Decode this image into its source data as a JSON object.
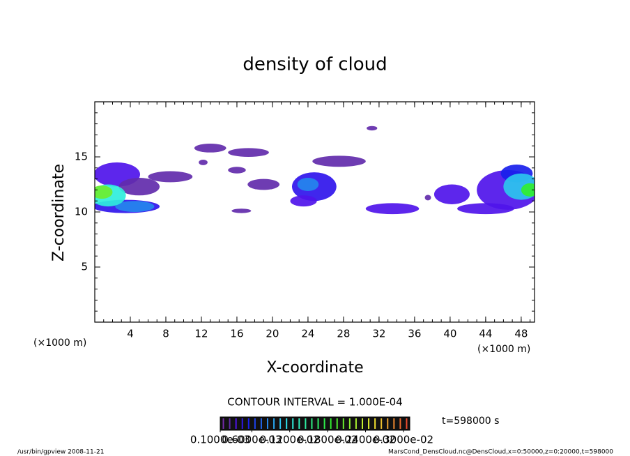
{
  "chart_data": {
    "type": "contour",
    "title": "density of cloud",
    "xlabel": "X-coordinate",
    "ylabel": "Z-coordinate",
    "xunit": "(×1000 m)",
    "xlim": [
      0,
      49.5
    ],
    "ylim": [
      0,
      20
    ],
    "xticks": [
      4,
      8,
      12,
      16,
      20,
      24,
      28,
      32,
      36,
      40,
      44,
      48
    ],
    "yticks": [
      5,
      10,
      15
    ],
    "contour_interval": 0.0001,
    "contour_label": "CONTOUR INTERVAL = 1.000E-04",
    "time_label": "t=598000 s",
    "colorbar": {
      "lim": [
        0.0001,
        0.0031
      ],
      "ticks": [
        {
          "value": 0.0001,
          "label": "0.1000e-03"
        },
        {
          "value": 0.0006,
          "label": "0.6000e-03"
        },
        {
          "value": 0.0012,
          "label": "0.1200e-02"
        },
        {
          "value": 0.0018,
          "label": "0.1800e-02"
        },
        {
          "value": 0.0024,
          "label": "0.2400e-02"
        },
        {
          "value": 0.003,
          "label": "0.3000e-02"
        }
      ]
    },
    "patches": [
      {
        "x": 2.5,
        "z": 13.4,
        "rx": 2.6,
        "rz": 1.1,
        "value": 0.0003
      },
      {
        "x": 5,
        "z": 12.3,
        "rx": 2.3,
        "rz": 0.8,
        "value": 0.0002
      },
      {
        "x": 3.5,
        "z": 10.5,
        "rx": 3.8,
        "rz": 0.6,
        "value": 0.0004
      },
      {
        "x": 4.5,
        "z": 10.5,
        "rx": 2.2,
        "rz": 0.5,
        "value": 0.0008
      },
      {
        "x": 1.5,
        "z": 11.5,
        "rx": 2,
        "rz": 1,
        "value": 0.0012
      },
      {
        "x": 0.8,
        "z": 11.8,
        "rx": 1.2,
        "rz": 0.6,
        "value": 0.002
      },
      {
        "x": 8.5,
        "z": 13.2,
        "rx": 2.5,
        "rz": 0.5,
        "value": 0.0002
      },
      {
        "x": 13,
        "z": 15.8,
        "rx": 1.8,
        "rz": 0.4,
        "value": 0.0002
      },
      {
        "x": 17.3,
        "z": 15.4,
        "rx": 2.3,
        "rz": 0.4,
        "value": 0.0002
      },
      {
        "x": 12.2,
        "z": 14.5,
        "rx": 0.5,
        "rz": 0.25,
        "value": 0.0002
      },
      {
        "x": 16,
        "z": 13.8,
        "rx": 1,
        "rz": 0.3,
        "value": 0.0002
      },
      {
        "x": 19,
        "z": 12.5,
        "rx": 1.8,
        "rz": 0.5,
        "value": 0.0002
      },
      {
        "x": 24.7,
        "z": 12.3,
        "rx": 2.5,
        "rz": 1.3,
        "value": 0.0004
      },
      {
        "x": 24,
        "z": 12.5,
        "rx": 1.2,
        "rz": 0.6,
        "value": 0.0008
      },
      {
        "x": 23.5,
        "z": 11,
        "rx": 1.5,
        "rz": 0.5,
        "value": 0.0003
      },
      {
        "x": 16.5,
        "z": 10.1,
        "rx": 1.1,
        "rz": 0.2,
        "value": 0.0002
      },
      {
        "x": 27.5,
        "z": 14.6,
        "rx": 3,
        "rz": 0.5,
        "value": 0.0002
      },
      {
        "x": 31.2,
        "z": 17.6,
        "rx": 0.6,
        "rz": 0.2,
        "value": 0.0002
      },
      {
        "x": 33.5,
        "z": 10.3,
        "rx": 3,
        "rz": 0.5,
        "value": 0.0003
      },
      {
        "x": 37.5,
        "z": 11.3,
        "rx": 0.35,
        "rz": 0.25,
        "value": 0.0002
      },
      {
        "x": 40.2,
        "z": 11.6,
        "rx": 2,
        "rz": 0.9,
        "value": 0.0003
      },
      {
        "x": 46.5,
        "z": 12,
        "rx": 3.5,
        "rz": 1.8,
        "value": 0.0003
      },
      {
        "x": 44,
        "z": 10.3,
        "rx": 3.2,
        "rz": 0.5,
        "value": 0.0003
      },
      {
        "x": 47.5,
        "z": 13.5,
        "rx": 1.8,
        "rz": 0.8,
        "value": 0.0005
      },
      {
        "x": 48,
        "z": 12.3,
        "rx": 2,
        "rz": 1.2,
        "value": 0.001
      },
      {
        "x": 49,
        "z": 12,
        "rx": 1,
        "rz": 0.6,
        "value": 0.0018
      }
    ],
    "footer_left": "/usr/bin/gpview   2008-11-21",
    "footer_right": "MarsCond_DensCloud.nc@DensCloud,x=0:50000,z=0:20000,t=598000"
  }
}
